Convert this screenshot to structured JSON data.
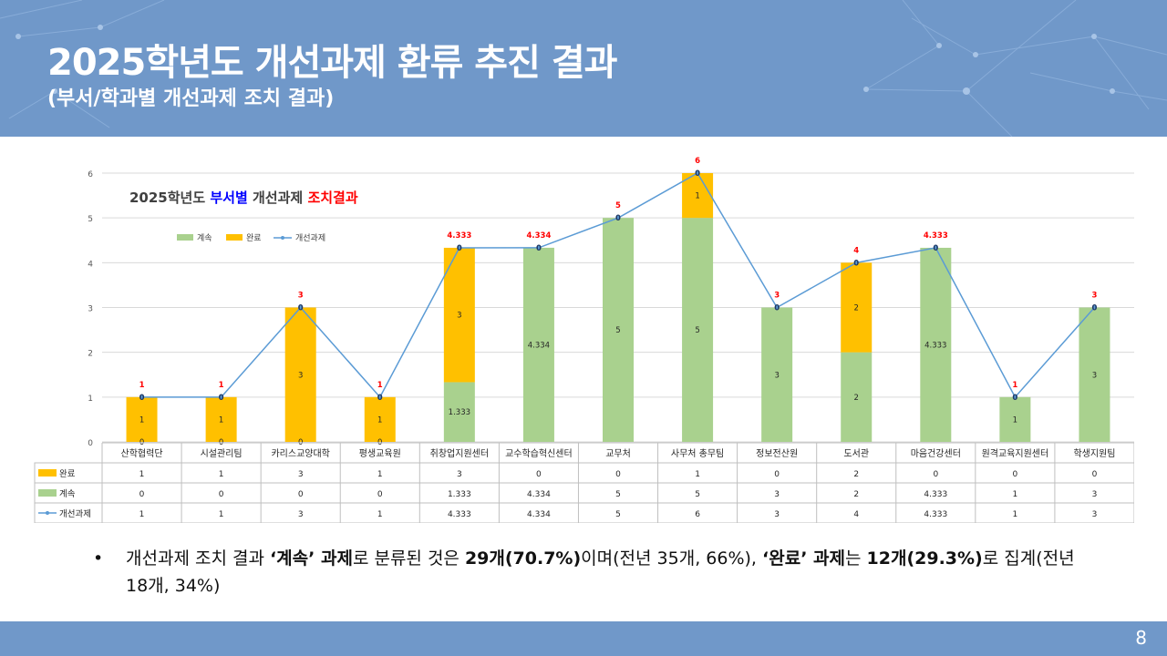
{
  "slide": {
    "title": "2025학년도 개선과제 환류 추진 결과",
    "subtitle": "(부서/학과별 개선과제 조치 결과)",
    "page_number": "8",
    "colors": {
      "header": "#7098c9",
      "continue": "#a9d18e",
      "complete": "#ffc000",
      "line": "#5b9bd5",
      "label_red": "#ff0000",
      "title_blue": "#0000ff"
    }
  },
  "bullet": {
    "part1": "개선과제 조치 결과 ",
    "part2": "‘계속’ 과제",
    "part3": "로 분류된 것은 ",
    "part4": "29개(70.7%)",
    "part5": "이며(전년 35개, 66%), ",
    "part6": "‘완료’ 과제",
    "part7": "는 ",
    "part8": "12개(29.3%)",
    "part9": "로 집계(전년 18개, 34%)"
  },
  "chart_data": {
    "type": "bar",
    "stacked": true,
    "title_parts": [
      "2025학년도 ",
      "부서별",
      " 개선과제 ",
      "조치결과"
    ],
    "categories": [
      "산학협력단",
      "시설관리팀",
      "카리스교양대학",
      "평생교육원",
      "취창업지원센터",
      "교수학습혁신센터",
      "교무처",
      "사무처 총무팀",
      "정보전산원",
      "도서관",
      "마음건강센터",
      "원격교육지원센터",
      "학생지원팀"
    ],
    "series": [
      {
        "name": "계속",
        "type": "bar",
        "color": "#a9d18e",
        "values": [
          0,
          0,
          0,
          0,
          1.333,
          4.334,
          5,
          5,
          3,
          2,
          4.333,
          1,
          3
        ],
        "labels": [
          "0",
          "0",
          "0",
          "0",
          "1.333",
          "4.334",
          "5",
          "5",
          "3",
          "2",
          "4.333",
          "1",
          "3"
        ]
      },
      {
        "name": "완료",
        "type": "bar",
        "color": "#ffc000",
        "values": [
          1,
          1,
          3,
          1,
          3,
          0,
          0,
          1,
          0,
          2,
          0,
          0,
          0
        ],
        "labels": [
          "1",
          "1",
          "3",
          "1",
          "3",
          "0",
          "0",
          "1",
          "0",
          "2",
          "0",
          "0",
          "0"
        ]
      },
      {
        "name": "개선과제",
        "type": "line",
        "color": "#5b9bd5",
        "values": [
          1,
          1,
          3,
          1,
          4.333,
          4.334,
          5,
          6,
          3,
          4,
          4.333,
          1,
          3
        ],
        "labels": [
          "1",
          "1",
          "3",
          "1",
          "4.333",
          "4.334",
          "5",
          "6",
          "3",
          "4",
          "4.333",
          "1",
          "3"
        ]
      }
    ],
    "point_labels": [
      "0",
      "0",
      "0",
      "0",
      "0",
      "0",
      "0",
      "0",
      "0",
      "0",
      "0",
      "0",
      "0"
    ],
    "yticks": [
      "0",
      "1",
      "2",
      "3",
      "4",
      "5",
      "6"
    ],
    "ylim": [
      0,
      6
    ],
    "grid": true,
    "legend": "top-left",
    "data_table": true
  }
}
